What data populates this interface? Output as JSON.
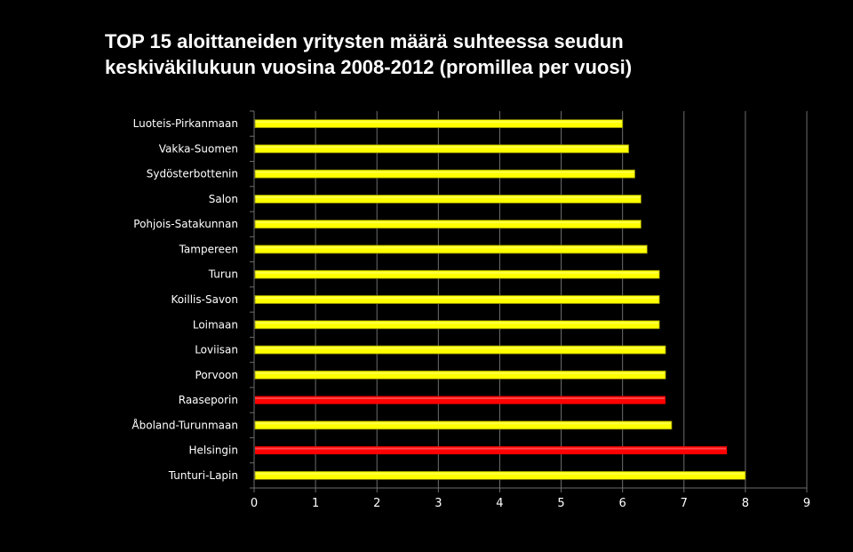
{
  "chart_data": {
    "type": "bar",
    "orientation": "horizontal",
    "title_lines": [
      "TOP 15 aloittaneiden yritysten määrä suhteessa seudun",
      "keskiväkilukuun vuosina 2008-2012 (promillea per vuosi)"
    ],
    "xlabel": "",
    "ylabel": "",
    "categories": [
      "Luoteis-Pirkanmaan",
      "Vakka-Suomen",
      "Sydösterbottenin",
      "Salon",
      "Pohjois-Satakunnan",
      "Tampereen",
      "Turun",
      "Koillis-Savon",
      "Loimaan",
      "Loviisan",
      "Porvoon",
      "Raaseporin",
      "Åboland-Turunmaan",
      "Helsingin",
      "Tunturi-Lapin"
    ],
    "values": [
      6.0,
      6.1,
      6.2,
      6.3,
      6.3,
      6.4,
      6.6,
      6.6,
      6.6,
      6.7,
      6.7,
      6.7,
      6.8,
      7.7,
      8.0
    ],
    "highlighted": [
      false,
      false,
      false,
      false,
      false,
      false,
      false,
      false,
      false,
      false,
      false,
      true,
      false,
      true,
      false
    ],
    "xlim": [
      0,
      9
    ],
    "xticks": [
      "0",
      "1",
      "2",
      "3",
      "4",
      "5",
      "6",
      "7",
      "8",
      "9"
    ],
    "grid": true,
    "legend": "none",
    "colors": {
      "bar": "#ffff00",
      "bar_highlight": "#ff0000",
      "background": "#000000",
      "text": "#ffffff",
      "grid": "#6e6e6e"
    }
  }
}
